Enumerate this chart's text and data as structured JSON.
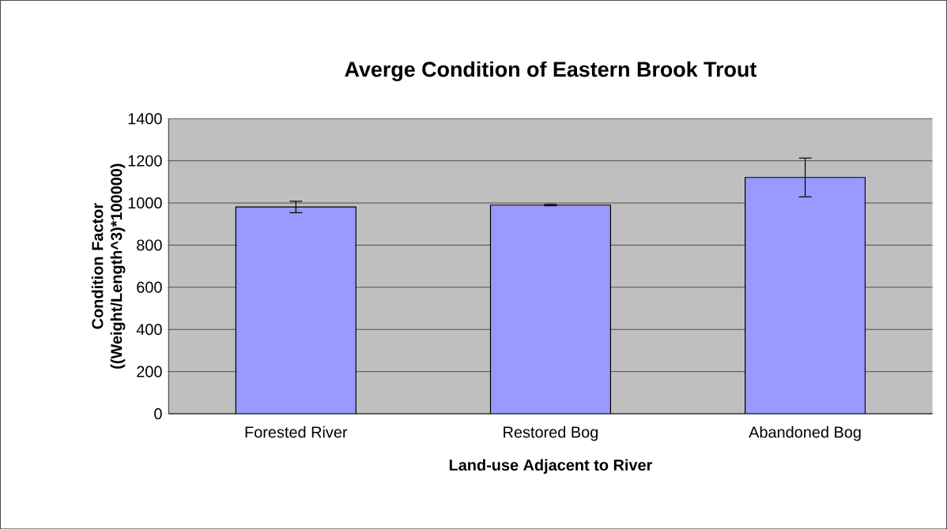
{
  "chart_data": {
    "type": "bar",
    "title": "Averge Condition of Eastern Brook Trout",
    "xlabel": "Land-use Adjacent to River",
    "ylabel": "Condition Factor\n((Weight/Length^3)*100000)",
    "categories": [
      "Forested River",
      "Restored Bog",
      "Abandoned Bog"
    ],
    "values": [
      981,
      990,
      1121
    ],
    "errors": [
      27,
      3,
      92
    ],
    "color": "#9999ff",
    "ylim": [
      0,
      1400
    ],
    "yticks": [
      0,
      200,
      400,
      600,
      800,
      1000,
      1200,
      1400
    ],
    "grid": "y"
  }
}
